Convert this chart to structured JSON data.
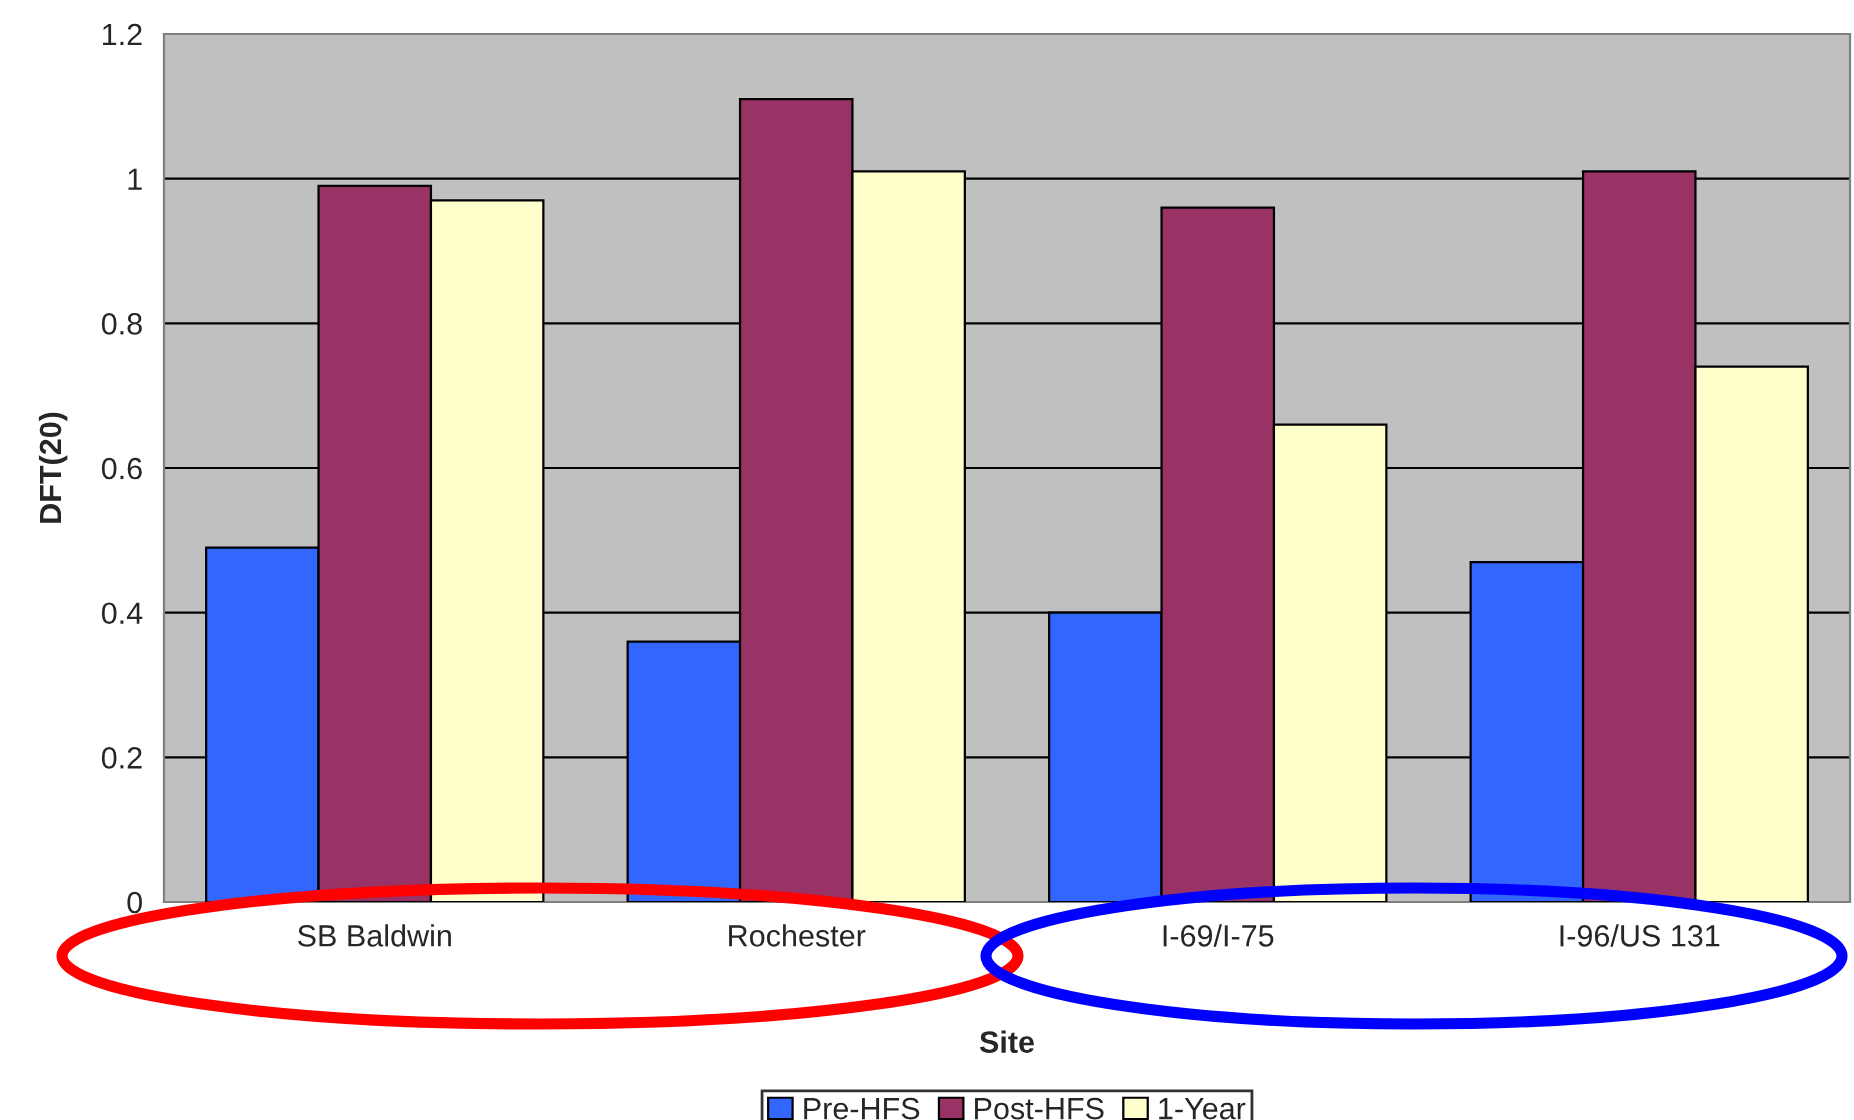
{
  "chart_data": {
    "type": "bar",
    "xlabel": "Site",
    "ylabel": "DFT(20)",
    "categories": [
      "SB Baldwin",
      "Rochester",
      "I-69/I-75",
      "I-96/US 131"
    ],
    "series": [
      {
        "name": "Pre-HFS",
        "color": "#3366ff",
        "values": [
          0.49,
          0.36,
          0.4,
          0.47
        ]
      },
      {
        "name": "Post-HFS",
        "color": "#993366",
        "values": [
          0.99,
          1.11,
          0.96,
          1.01
        ]
      },
      {
        "name": "1-Year",
        "color": "#ffffcc",
        "values": [
          0.97,
          1.01,
          0.66,
          0.74
        ]
      }
    ],
    "ylim": [
      0,
      1.2
    ],
    "yticks": [
      0,
      0.2,
      0.4,
      0.6,
      0.8,
      1,
      1.2
    ],
    "grid": "y",
    "legend": "bottom"
  }
}
